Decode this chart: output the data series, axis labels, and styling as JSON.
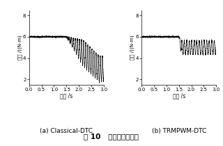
{
  "fig_width": 3.2,
  "fig_height": 2.1,
  "dpi": 100,
  "background_color": "#ffffff",
  "title_text": "图 10   电主轴输出转矩",
  "title_fontsize": 7.5,
  "subplot_a_label": "(a) Classical-DTC",
  "subplot_b_label": "(b) TRMPWM-DTC",
  "xlabel": "时间 /s",
  "ylabel": "转矩 /((N·m)",
  "xlabel_fontsize": 5.5,
  "ylabel_fontsize": 5.0,
  "tick_fontsize": 5.0,
  "label_fontsize": 6.5,
  "xlim": [
    0,
    3.0
  ],
  "ylim": [
    1.5,
    8.5
  ],
  "yticks": [
    2,
    4,
    6,
    8
  ],
  "xticks": [
    0,
    0.5,
    1.0,
    1.5,
    2.0,
    2.5,
    3.0
  ],
  "line_color": "#000000",
  "line_width": 0.45,
  "steady_value": 6.0,
  "steady_noise": 0.08,
  "trans_start": 1.5,
  "trans_end_a": 2.8,
  "final_mean_a": 3.0,
  "osc_amp_a": 1.2,
  "osc_freq_a": 12,
  "trans_end_b": 1.6,
  "final_mean_b": 5.0,
  "osc_amp_b": 0.65,
  "osc_freq_b": 10,
  "n_points": 4000
}
